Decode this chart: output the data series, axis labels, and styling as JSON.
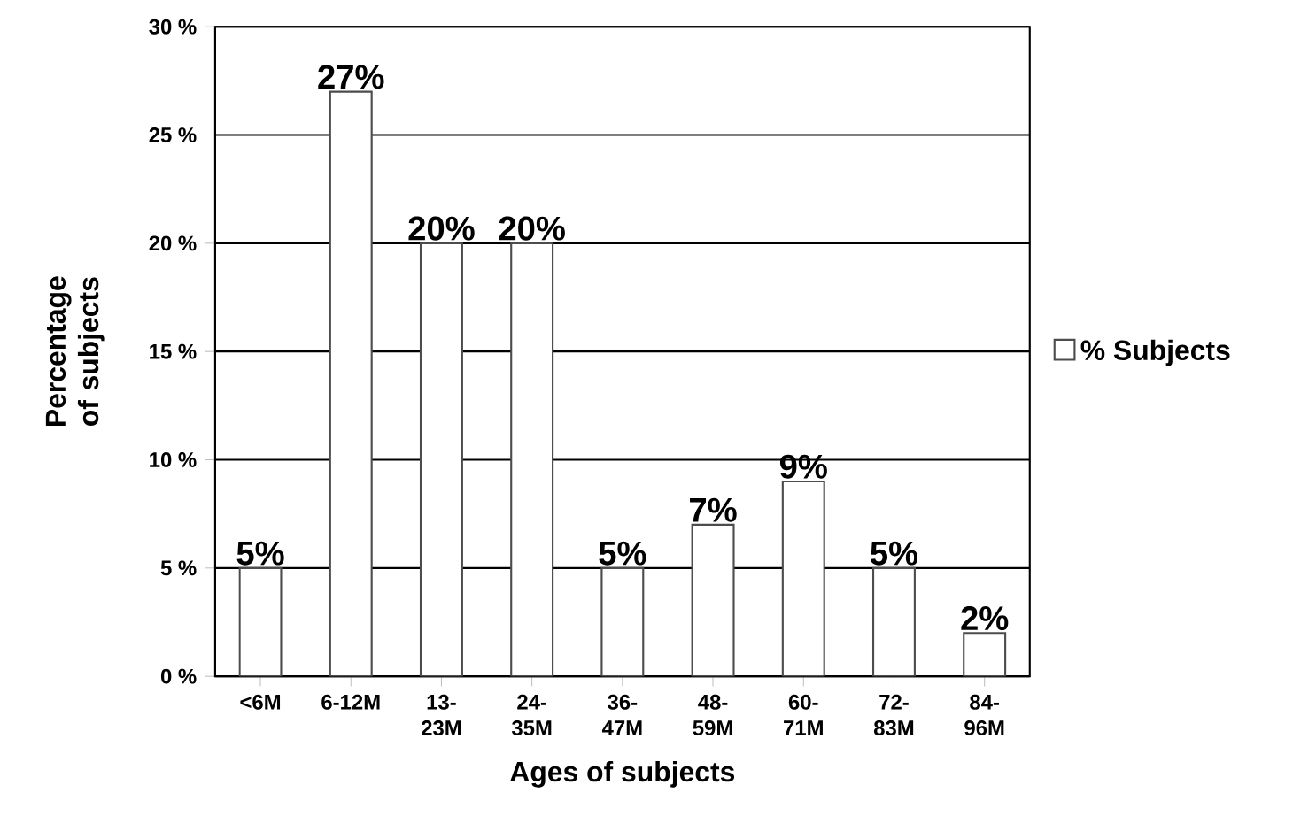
{
  "chart_data": {
    "type": "bar",
    "xlabel": "Ages of subjects",
    "ylabel": "Percentage of subjects",
    "categories": [
      "<6M",
      "6-12M",
      "13- 23M",
      "24- 35M",
      "36- 47M",
      "48- 59M",
      "60- 71M",
      "72- 83M",
      "84- 96M"
    ],
    "series": [
      {
        "name": "% Subjects",
        "color": "#ffffff",
        "values": [
          5,
          27,
          20,
          20,
          5,
          7,
          9,
          5,
          2
        ],
        "value_labels": [
          "5%",
          "27%",
          "20%",
          "20%",
          "5%",
          "7%",
          "9%",
          "5%",
          "2%"
        ]
      }
    ],
    "ylim": [
      0,
      30
    ],
    "yticks": [
      {
        "value": 0,
        "label": "0 %"
      },
      {
        "value": 5,
        "label": "5 %"
      },
      {
        "value": 10,
        "label": "10 %"
      },
      {
        "value": 15,
        "label": "15 %"
      },
      {
        "value": 20,
        "label": "20 %"
      },
      {
        "value": 25,
        "label": "25 %"
      },
      {
        "value": 30,
        "label": "30 %"
      }
    ],
    "grid": "y",
    "legend": "right"
  }
}
